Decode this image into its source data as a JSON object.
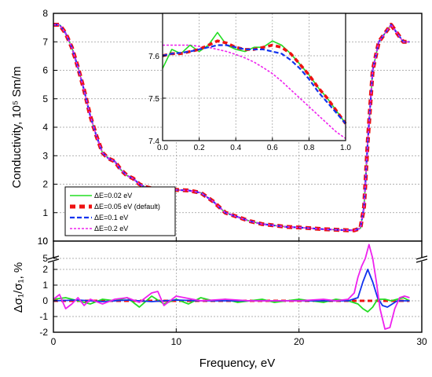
{
  "chart_data": [
    {
      "type": "line",
      "panel": "main",
      "xlabel": "Frequency, eV",
      "ylabel": "Conductivity, 10⁵ Sm/m",
      "xlim": [
        0,
        30
      ],
      "ylim": [
        0,
        8
      ],
      "x_ticks": [
        "0",
        "10",
        "20",
        "30"
      ],
      "y_ticks": [
        "0",
        "1",
        "2",
        "3",
        "4",
        "5",
        "6",
        "7",
        "8"
      ],
      "grid": true,
      "legend_position": "bottom-left",
      "series": [
        {
          "name": "ΔE=0.02 eV",
          "color": "#22dd22",
          "style": "solid"
        },
        {
          "name": "ΔE=0.05 eV (default)",
          "color": "#ee1111",
          "style": "thick-dash"
        },
        {
          "name": "ΔE=0.1 eV",
          "color": "#1133ee",
          "style": "dash"
        },
        {
          "name": "ΔE=0.2 eV",
          "color": "#ee22ee",
          "style": "short-dash"
        }
      ],
      "x": [
        0,
        0.5,
        1,
        1.5,
        2,
        2.5,
        3,
        3.5,
        4,
        4.5,
        5,
        5.5,
        6,
        6.5,
        7,
        7.5,
        8,
        8.5,
        9,
        10,
        11,
        12,
        13,
        14,
        15,
        16,
        17,
        18,
        19,
        20,
        21,
        22,
        23,
        24,
        24.5,
        25,
        25.3,
        25.6,
        26,
        26.5,
        27,
        27.5,
        28,
        28.5,
        29
      ],
      "y": [
        7.6,
        7.6,
        7.3,
        6.8,
        6.1,
        5.3,
        4.4,
        3.7,
        3.1,
        2.9,
        2.8,
        2.5,
        2.3,
        2.2,
        2.0,
        1.9,
        1.85,
        1.8,
        1.8,
        1.8,
        1.78,
        1.7,
        1.4,
        1.0,
        0.85,
        0.7,
        0.6,
        0.55,
        0.5,
        0.48,
        0.45,
        0.42,
        0.4,
        0.38,
        0.38,
        0.45,
        1.2,
        3.5,
        6.0,
        7.0,
        7.3,
        7.6,
        7.3,
        7.0,
        7.0
      ]
    },
    {
      "type": "line",
      "panel": "inset",
      "xlim": [
        0,
        1
      ],
      "ylim": [
        7.4,
        7.7
      ],
      "x_ticks": [
        "0.0",
        "0.2",
        "0.4",
        "0.6",
        "0.8",
        "1.0"
      ],
      "y_ticks": [
        "7.4",
        "7.5",
        "7.6"
      ],
      "grid": true,
      "series": [
        {
          "name": "ΔE=0.02 eV",
          "color": "#22dd22",
          "x": [
            0,
            0.05,
            0.1,
            0.15,
            0.2,
            0.25,
            0.3,
            0.35,
            0.4,
            0.45,
            0.5,
            0.55,
            0.6,
            0.65,
            0.7,
            0.75,
            0.8,
            0.85,
            0.9,
            0.95,
            1.0
          ],
          "y": [
            7.57,
            7.615,
            7.605,
            7.625,
            7.61,
            7.625,
            7.655,
            7.625,
            7.615,
            7.61,
            7.62,
            7.62,
            7.635,
            7.625,
            7.605,
            7.58,
            7.555,
            7.525,
            7.5,
            7.47,
            7.44
          ]
        },
        {
          "name": "ΔE=0.05 eV (default)",
          "color": "#ee1111",
          "x": [
            0,
            0.05,
            0.1,
            0.15,
            0.2,
            0.25,
            0.3,
            0.35,
            0.4,
            0.45,
            0.5,
            0.55,
            0.6,
            0.65,
            0.7,
            0.75,
            0.8,
            0.85,
            0.9,
            0.95,
            1.0
          ],
          "y": [
            7.6,
            7.605,
            7.605,
            7.61,
            7.615,
            7.625,
            7.635,
            7.63,
            7.62,
            7.615,
            7.615,
            7.62,
            7.625,
            7.62,
            7.605,
            7.58,
            7.555,
            7.525,
            7.5,
            7.47,
            7.44
          ]
        },
        {
          "name": "ΔE=0.1 eV",
          "color": "#1133ee",
          "x": [
            0,
            0.05,
            0.1,
            0.15,
            0.2,
            0.25,
            0.3,
            0.35,
            0.4,
            0.45,
            0.5,
            0.55,
            0.6,
            0.65,
            0.7,
            0.75,
            0.8,
            0.85,
            0.9,
            0.95,
            1.0
          ],
          "y": [
            7.6,
            7.605,
            7.607,
            7.61,
            7.615,
            7.62,
            7.625,
            7.625,
            7.62,
            7.615,
            7.615,
            7.615,
            7.61,
            7.605,
            7.59,
            7.57,
            7.545,
            7.515,
            7.49,
            7.465,
            7.44
          ]
        },
        {
          "name": "ΔE=0.2 eV",
          "color": "#ee22ee",
          "x": [
            0,
            0.05,
            0.1,
            0.15,
            0.2,
            0.25,
            0.3,
            0.35,
            0.4,
            0.45,
            0.5,
            0.55,
            0.6,
            0.65,
            0.7,
            0.75,
            0.8,
            0.85,
            0.9,
            0.95,
            1.0
          ],
          "y": [
            7.625,
            7.625,
            7.625,
            7.625,
            7.622,
            7.62,
            7.615,
            7.61,
            7.603,
            7.595,
            7.585,
            7.572,
            7.558,
            7.54,
            7.52,
            7.5,
            7.48,
            7.46,
            7.44,
            7.42,
            7.405
          ]
        }
      ]
    },
    {
      "type": "line",
      "panel": "difference",
      "xlabel": "Frequency, eV",
      "ylabel": "Δσ₁/σ₁, %",
      "xlim": [
        0,
        30
      ],
      "ylim": [
        -2,
        10
      ],
      "axis_break": [
        2.5,
        5
      ],
      "y_ticks": [
        "-2",
        "-1",
        "0",
        "1",
        "2",
        "5",
        "10"
      ],
      "grid": true,
      "series": [
        {
          "name": "ΔE=0.02 eV",
          "color": "#22dd22",
          "x": [
            0,
            1,
            2,
            3,
            4,
            5,
            6,
            7,
            8,
            9,
            10,
            11,
            12,
            13,
            14,
            15,
            16,
            17,
            18,
            19,
            20,
            21,
            22,
            23,
            24,
            24.8,
            25.2,
            25.6,
            26,
            26.4,
            27,
            27.5,
            28,
            28.5,
            29
          ],
          "y": [
            0.1,
            0.2,
            0.0,
            -0.2,
            0.1,
            0.0,
            0.2,
            -0.4,
            0.3,
            -0.2,
            0.1,
            -0.2,
            0.2,
            0.0,
            0.1,
            -0.1,
            0.0,
            0.1,
            -0.1,
            0.0,
            0.1,
            0.0,
            -0.1,
            0.1,
            0.0,
            -0.2,
            -0.5,
            -0.7,
            -0.4,
            0.1,
            0.1,
            0.0,
            0.1,
            0.2,
            0.0
          ]
        },
        {
          "name": "ΔE=0.05 eV (default)",
          "color": "#ee1111",
          "x": [
            0,
            29
          ],
          "y": [
            0,
            0
          ]
        },
        {
          "name": "ΔE=0.1 eV",
          "color": "#1133ee",
          "x": [
            0,
            2,
            4,
            6,
            8,
            10,
            12,
            14,
            16,
            18,
            20,
            22,
            24,
            24.8,
            25.2,
            25.6,
            26,
            26.4,
            26.8,
            27.2,
            27.6,
            28,
            29
          ],
          "y": [
            0,
            0.05,
            -0.05,
            0.05,
            -0.05,
            0.05,
            0.0,
            0.0,
            0.0,
            0.0,
            0.0,
            0.0,
            0.0,
            0.2,
            1.2,
            2.0,
            1.2,
            0.2,
            -0.3,
            -0.4,
            -0.2,
            0.0,
            0.0
          ]
        },
        {
          "name": "ΔE=0.2 eV",
          "color": "#ee22ee",
          "x": [
            0,
            0.5,
            1,
            1.5,
            2,
            2.5,
            3,
            4,
            5,
            6,
            7,
            8,
            8.5,
            9,
            10,
            12,
            14,
            16,
            18,
            20,
            22,
            23,
            24,
            24.5,
            24.8,
            25.1,
            25.4,
            25.7,
            26,
            26.3,
            26.6,
            27,
            27.4,
            27.8,
            28.2,
            28.6,
            29
          ],
          "y": [
            0.1,
            0.4,
            -0.5,
            -0.2,
            0.2,
            -0.3,
            0.1,
            -0.2,
            0.1,
            0.2,
            -0.1,
            0.5,
            0.6,
            -0.3,
            0.3,
            0.0,
            0.1,
            0.0,
            0.0,
            0.0,
            0.1,
            0.0,
            0.1,
            0.5,
            1.5,
            2.2,
            5.0,
            9.0,
            5.0,
            1.2,
            -0.5,
            -1.8,
            -1.7,
            -0.5,
            0.2,
            0.3,
            0.2
          ]
        }
      ]
    }
  ]
}
